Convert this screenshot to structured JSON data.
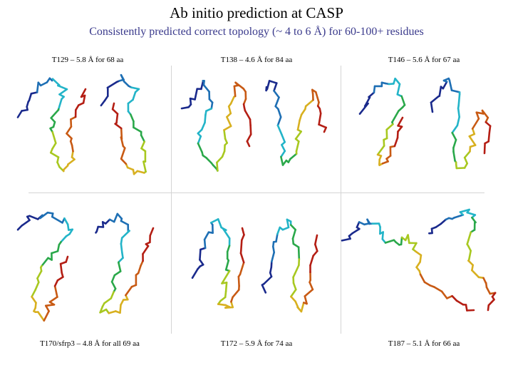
{
  "slide": {
    "title": "Ab initio prediction at CASP",
    "subtitle": "Consistently predicted correct topology (~ 4 to 6 Å) for 60-100+ residues"
  },
  "panels": [
    {
      "caption": "T129 – 5.8 Å for 68 aa"
    },
    {
      "caption": "T138 – 4.6 Å for 84 aa"
    },
    {
      "caption": "T146 – 5.6 Å for 67 aa"
    },
    {
      "caption": "T170/sfrp3 – 4.8 Å for all 69 aa"
    },
    {
      "caption": "T172 –  5.9 Å for 74 aa"
    },
    {
      "caption": "T187 – 5.1 Å for 66 aa"
    }
  ],
  "colors": {
    "backbone_gradient": [
      "#1a2a8c",
      "#1e6fb4",
      "#23b4c8",
      "#2aa84a",
      "#a8c820",
      "#d8b020",
      "#c85a14",
      "#b41e14"
    ],
    "divider": "#d4d4d4"
  }
}
